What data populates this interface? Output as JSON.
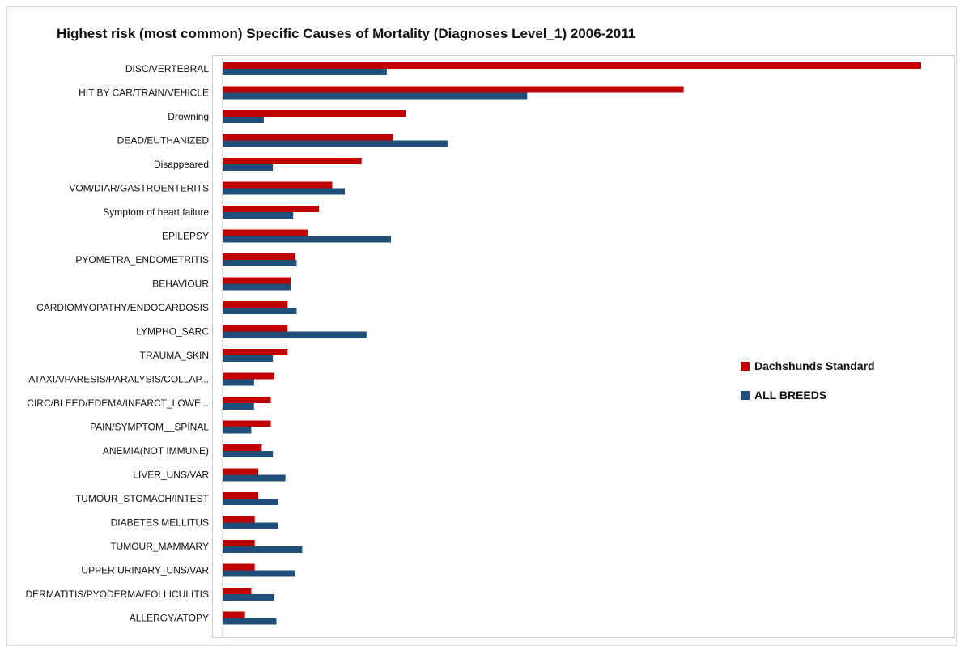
{
  "colors": {
    "series_1": "#c00000",
    "series_2": "#1f4e79"
  },
  "chart_data": {
    "type": "bar",
    "orientation": "horizontal",
    "title": "Highest risk (most common) Specific Causes of Mortality (Diagnoses Level_1) 2006-2011",
    "xlabel": "",
    "ylabel": "",
    "xlim": [
      0,
      100
    ],
    "grid": false,
    "legend_position": "right",
    "categories": [
      "DISC/VERTEBRAL",
      "HIT BY CAR/TRAIN/VEHICLE",
      "Drowning",
      "DEAD/EUTHANIZED",
      "Disappeared",
      "VOM/DIAR/GASTROENTERITS",
      "Symptom of heart failure",
      "EPILEPSY",
      "PYOMETRA_ENDOMETRITIS",
      "BEHAVIOUR",
      "CARDIOMYOPATHY/ENDOCARDOSIS",
      "LYMPHO_SARC",
      "TRAUMA_SKIN",
      "ATAXIA/PARESIS/PARALYSIS/COLLAP...",
      "CIRC/BLEED/EDEMA/INFARCT_LOWE...",
      "PAIN/SYMPTOM__SPINAL",
      "ANEMIA(NOT IMMUNE)",
      "LIVER_UNS/VAR",
      "TUMOUR_STOMACH/INTEST",
      "DIABETES MELLITUS",
      "TUMOUR_MAMMARY",
      "UPPER URINARY_UNS/VAR",
      "DERMATITIS/PYODERMA/FOLLICULITIS",
      "ALLERGY/ATOPY"
    ],
    "series": [
      {
        "name": "Dachshunds Standard",
        "values": [
          100,
          66.0,
          26.2,
          24.4,
          19.9,
          15.7,
          13.8,
          12.2,
          10.4,
          9.8,
          9.3,
          9.3,
          9.3,
          7.4,
          6.9,
          6.9,
          5.6,
          5.1,
          5.1,
          4.6,
          4.6,
          4.6,
          4.1,
          3.2
        ]
      },
      {
        "name": "ALL BREEDS",
        "values": [
          23.5,
          43.6,
          5.9,
          32.2,
          7.2,
          17.5,
          10.1,
          24.1,
          10.6,
          9.8,
          10.6,
          20.6,
          7.2,
          4.5,
          4.5,
          4.1,
          7.2,
          9.0,
          8.0,
          8.0,
          11.4,
          10.4,
          7.4,
          7.7
        ]
      }
    ]
  }
}
